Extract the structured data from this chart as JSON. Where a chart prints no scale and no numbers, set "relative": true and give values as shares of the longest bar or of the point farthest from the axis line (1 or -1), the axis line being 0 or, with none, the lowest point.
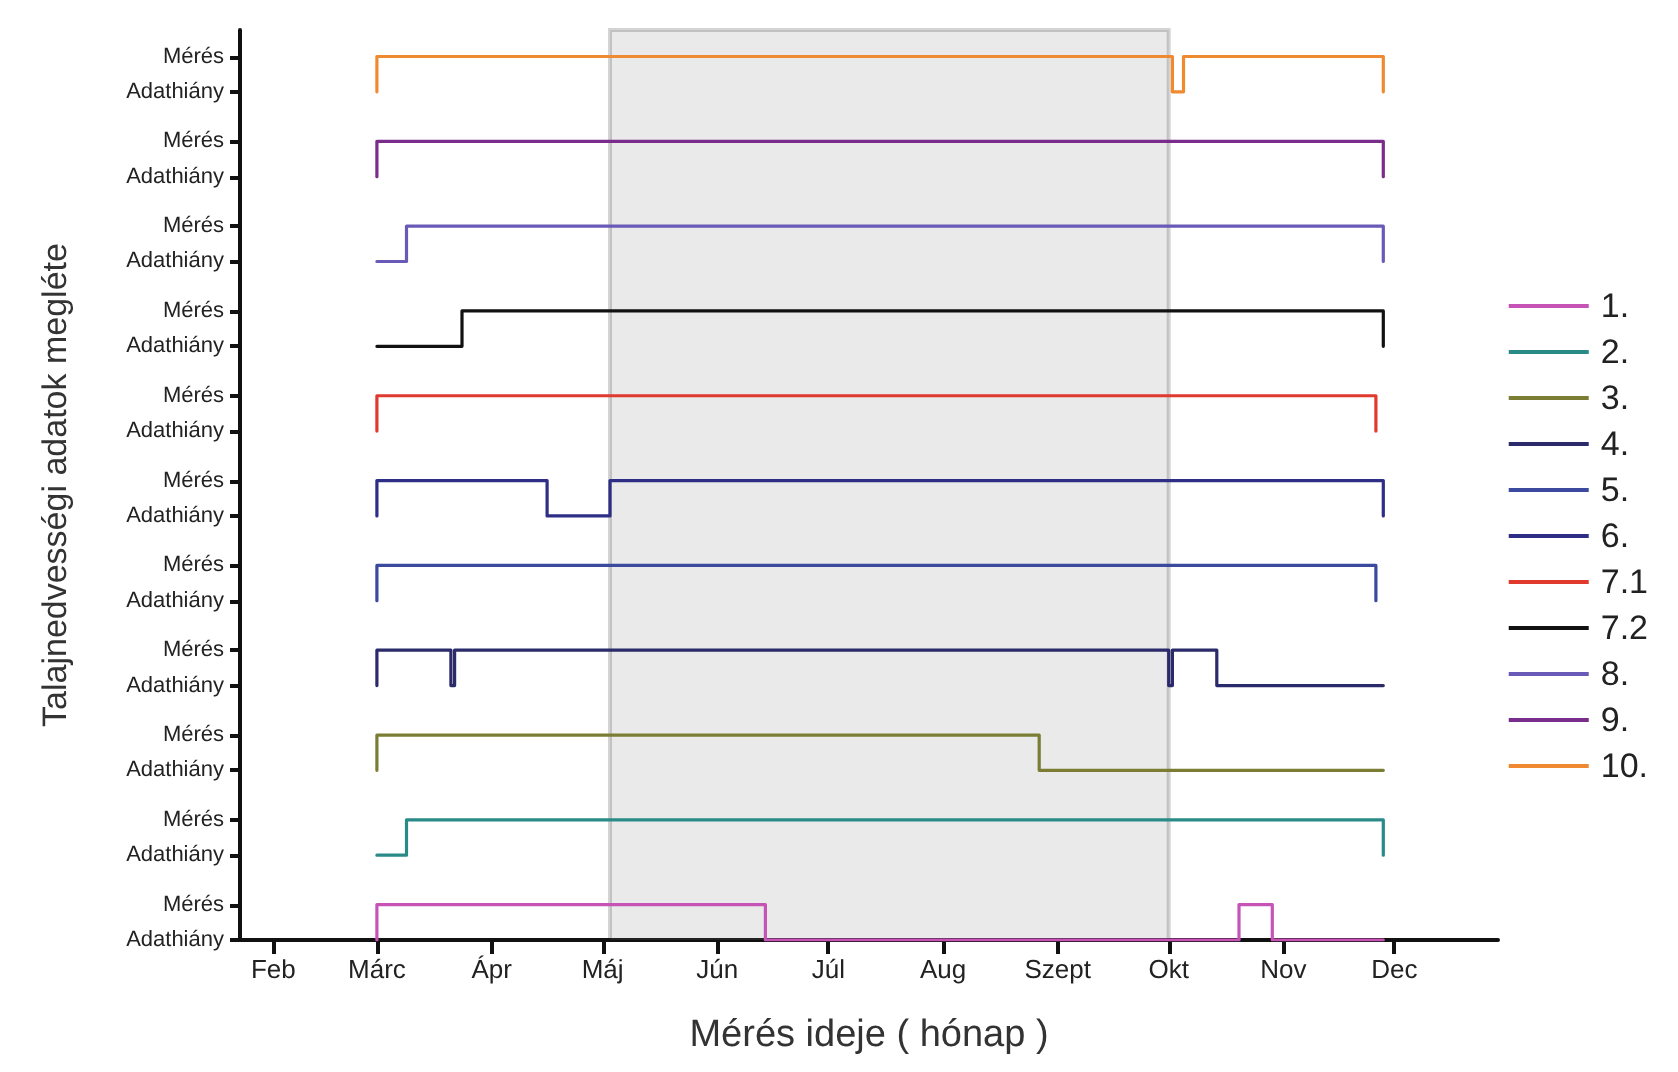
{
  "chart_data": {
    "type": "step",
    "xlabel": "Mérés ideje ( hónap )",
    "ylabel": "Talajnedvességi adatok megléte",
    "relative": true,
    "xlim": [
      "--01-23",
      "--12-29"
    ],
    "xticks": [
      {
        "value": "--02-01",
        "label": "Feb"
      },
      {
        "value": "--03-01",
        "label": "Márc"
      },
      {
        "value": "--04-01",
        "label": "Ápr"
      },
      {
        "value": "--05-01",
        "label": "Máj"
      },
      {
        "value": "--06-01",
        "label": "Jún"
      },
      {
        "value": "--07-01",
        "label": "Júl"
      },
      {
        "value": "--08-01",
        "label": "Aug"
      },
      {
        "value": "--09-01",
        "label": "Szept"
      },
      {
        "value": "--10-01",
        "label": "Okt"
      },
      {
        "value": "--11-01",
        "label": "Nov"
      },
      {
        "value": "--12-01",
        "label": "Dec"
      }
    ],
    "annotations": [
      "Adathiány",
      "Mérés",
      "Adathiány",
      "Mérés",
      "Adathiány",
      "Mérés",
      "Adathiány",
      "Mérés",
      "Adathiány",
      "Mérés",
      "Adathiány",
      "Mérés",
      "Adathiány",
      "Mérés",
      "Adathiány",
      "Mérés",
      "Adathiány",
      "Mérés",
      "Adathiány",
      "Mérés",
      "Adathiány",
      "Mérés"
    ],
    "grid": false,
    "legend": "right",
    "marker": "none",
    "line_style": "solid",
    "bands": [
      {
        "axis": "x",
        "from": "--05-03",
        "to": "--10-01",
        "color": "#888888"
      }
    ],
    "series": [
      {
        "name": "1.",
        "color": "#c653b6",
        "x": [
          "--03-01",
          "--03-01",
          "--06-14",
          "--10-20",
          "--10-29",
          "--11-28"
        ],
        "values": [
          0,
          0.04,
          0,
          0.04,
          0,
          0
        ]
      },
      {
        "name": "2.",
        "color": "#2a8a88",
        "x": [
          "--03-01",
          "--03-09",
          "--11-28"
        ],
        "values": [
          0.096,
          0.136,
          0.096
        ]
      },
      {
        "name": "3.",
        "color": "#7b7d35",
        "x": [
          "--03-01",
          "--03-01",
          "--08-27",
          "--11-28"
        ],
        "values": [
          0.192,
          0.232,
          0.192,
          0.192
        ]
      },
      {
        "name": "4.",
        "color": "#2b2b6b",
        "x": [
          "--03-01",
          "--03-01",
          "--03-21",
          "--03-22",
          "--10-01",
          "--10-02",
          "--10-14",
          "--11-28"
        ],
        "values": [
          0.288,
          0.328,
          0.288,
          0.328,
          0.288,
          0.328,
          0.288,
          0.288
        ]
      },
      {
        "name": "5.",
        "color": "#3b4a9e",
        "x": [
          "--03-01",
          "--03-01",
          "--11-26"
        ],
        "values": [
          0.384,
          0.424,
          0.384
        ]
      },
      {
        "name": "6.",
        "color": "#2e2e86",
        "x": [
          "--03-01",
          "--03-01",
          "--04-16",
          "--05-03",
          "--11-28"
        ],
        "values": [
          0.48,
          0.52,
          0.48,
          0.52,
          0.48
        ]
      },
      {
        "name": "7.1",
        "color": "#e03a2e",
        "x": [
          "--03-01",
          "--03-01",
          "--11-26"
        ],
        "values": [
          0.576,
          0.616,
          0.576
        ]
      },
      {
        "name": "7.2",
        "color": "#111111",
        "x": [
          "--03-01",
          "--03-24",
          "--11-28"
        ],
        "values": [
          0.672,
          0.712,
          0.672
        ]
      },
      {
        "name": "8.",
        "color": "#6a5ab8",
        "x": [
          "--03-01",
          "--03-09",
          "--11-28"
        ],
        "values": [
          0.768,
          0.808,
          0.768
        ]
      },
      {
        "name": "9.",
        "color": "#7a2d8a",
        "x": [
          "--03-01",
          "--03-01",
          "--11-28"
        ],
        "values": [
          0.864,
          0.904,
          0.864
        ]
      },
      {
        "name": "10.",
        "color": "#f08a30",
        "x": [
          "--03-01",
          "--03-01",
          "--10-02",
          "--10-05",
          "--11-28"
        ],
        "values": [
          0.96,
          1,
          0.96,
          1,
          0.96
        ]
      }
    ]
  }
}
